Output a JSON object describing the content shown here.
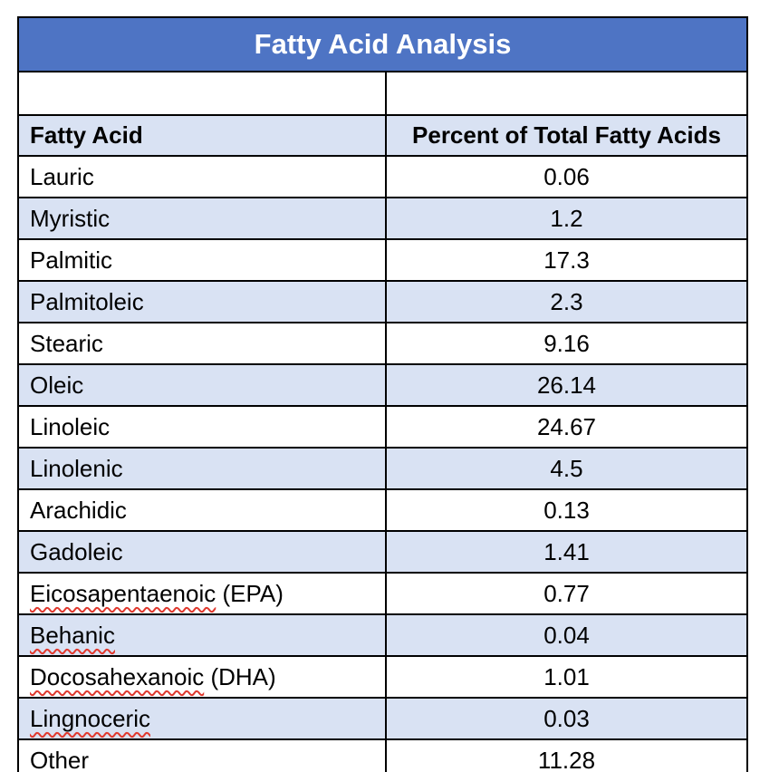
{
  "colors": {
    "title_bg": "#4E74C4",
    "title_text": "#FFFFFF",
    "band_bg": "#D9E2F3",
    "border": "#000000",
    "squiggle": "#E0392E"
  },
  "document": {
    "title": "Fatty Acid Analysis",
    "columns": [
      "Fatty Acid",
      "Percent of Total Fatty Acids"
    ],
    "rows": [
      {
        "name": "Lauric",
        "suffix": "",
        "value": "0.06",
        "shaded": false,
        "misspelled": false
      },
      {
        "name": "Myristic",
        "suffix": "",
        "value": "1.2",
        "shaded": true,
        "misspelled": false
      },
      {
        "name": "Palmitic",
        "suffix": "",
        "value": "17.3",
        "shaded": false,
        "misspelled": false
      },
      {
        "name": "Palmitoleic",
        "suffix": "",
        "value": "2.3",
        "shaded": true,
        "misspelled": false
      },
      {
        "name": "Stearic",
        "suffix": "",
        "value": "9.16",
        "shaded": false,
        "misspelled": false
      },
      {
        "name": "Oleic",
        "suffix": "",
        "value": "26.14",
        "shaded": true,
        "misspelled": false
      },
      {
        "name": "Linoleic",
        "suffix": "",
        "value": "24.67",
        "shaded": false,
        "misspelled": false
      },
      {
        "name": "Linolenic",
        "suffix": "",
        "value": "4.5",
        "shaded": true,
        "misspelled": false
      },
      {
        "name": "Arachidic",
        "suffix": "",
        "value": "0.13",
        "shaded": false,
        "misspelled": false
      },
      {
        "name": "Gadoleic",
        "suffix": "",
        "value": "1.41",
        "shaded": true,
        "misspelled": false
      },
      {
        "name": "Eicosapentaenoic",
        "suffix": " (EPA)",
        "value": "0.77",
        "shaded": false,
        "misspelled": true
      },
      {
        "name": "Behanic",
        "suffix": "",
        "value": "0.04",
        "shaded": true,
        "misspelled": true
      },
      {
        "name": "Docosahexanoic",
        "suffix": " (DHA)",
        "value": "1.01",
        "shaded": false,
        "misspelled": true
      },
      {
        "name": "Lingnoceric",
        "suffix": "",
        "value": "0.03",
        "shaded": true,
        "misspelled": true
      },
      {
        "name": "Other",
        "suffix": "",
        "value": "11.28",
        "shaded": false,
        "misspelled": false
      }
    ]
  }
}
